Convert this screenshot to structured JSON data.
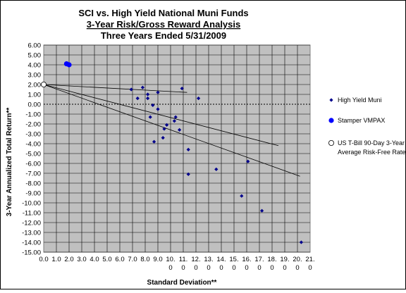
{
  "chart_data": {
    "type": "scatter",
    "title": "SCI vs. High Yield National Muni Funds",
    "subtitle": "3-Year Risk/Gross Reward Analysis",
    "subtitle2": "Three Years Ended 5/31/2009",
    "xlabel": "Standard Deviation**",
    "ylabel": "3-Year Annualized Total Return**",
    "xlim": [
      0,
      21
    ],
    "ylim": [
      -15,
      6
    ],
    "grid": true,
    "legend_position": "right",
    "x_ticks": [
      [
        "0.0"
      ],
      [
        "1.0"
      ],
      [
        "2.0"
      ],
      [
        "3.0"
      ],
      [
        "4.0"
      ],
      [
        "5.0"
      ],
      [
        "6.0"
      ],
      [
        "7.0"
      ],
      [
        "8.0"
      ],
      [
        "9.0"
      ],
      [
        "10.",
        "0"
      ],
      [
        "11.",
        "0"
      ],
      [
        "12.",
        "0"
      ],
      [
        "13.",
        "0"
      ],
      [
        "14.",
        "0"
      ],
      [
        "15.",
        "0"
      ],
      [
        "16.",
        "0"
      ],
      [
        "17.",
        "0"
      ],
      [
        "18.",
        "0"
      ],
      [
        "19.",
        "0"
      ],
      [
        "20.",
        "0"
      ],
      [
        "21.",
        "0"
      ]
    ],
    "y_ticks": [
      "6.00",
      "5.00",
      "4.00",
      "3.00",
      "2.00",
      "1.00",
      "0.00",
      "-1.00",
      "-2.00",
      "-3.00",
      "-4.00",
      "-5.00",
      "-6.00",
      "-7.00",
      "-8.00",
      "-9.00",
      "-10.00",
      "-11.00",
      "-12.00",
      "-13.00",
      "-14.00",
      "-15.00"
    ],
    "series": [
      {
        "name": "High Yield Muni",
        "color": "#00008b",
        "marker": "diamond",
        "points": [
          [
            6.9,
            1.5
          ],
          [
            7.4,
            0.6
          ],
          [
            7.8,
            1.7
          ],
          [
            8.2,
            0.6
          ],
          [
            8.2,
            1.0
          ],
          [
            8.4,
            -1.3
          ],
          [
            8.6,
            -0.1
          ],
          [
            8.7,
            -3.8
          ],
          [
            9.0,
            -0.5
          ],
          [
            9.0,
            1.2
          ],
          [
            9.4,
            -3.4
          ],
          [
            9.5,
            -2.5
          ],
          [
            9.7,
            -2.1
          ],
          [
            10.3,
            -1.7
          ],
          [
            10.4,
            -1.3
          ],
          [
            10.7,
            -2.6
          ],
          [
            10.9,
            1.6
          ],
          [
            11.4,
            -4.6
          ],
          [
            11.4,
            -7.1
          ],
          [
            12.2,
            0.6
          ],
          [
            13.6,
            -6.6
          ],
          [
            15.6,
            -9.3
          ],
          [
            16.1,
            -5.8
          ],
          [
            17.2,
            -10.8
          ],
          [
            20.3,
            -14.0
          ]
        ]
      },
      {
        "name": "Stamper VMPAX",
        "color": "#0000ff",
        "marker": "circle",
        "points": [
          [
            1.8,
            4.1
          ],
          [
            2.0,
            4.0
          ]
        ]
      },
      {
        "name": "US T-Bill 90-Day 3-Year Average Risk-Free Rate",
        "legend_lines": [
          "US T-Bill 90-Day 3-Year",
          "Average Risk-Free Rate"
        ],
        "color": "#ffffff",
        "marker": "open-circle",
        "points": [
          [
            0,
            2.0
          ]
        ]
      }
    ],
    "trend_lines": [
      [
        [
          0,
          2.0
        ],
        [
          11.3,
          1.2
        ]
      ],
      [
        [
          0,
          2.0
        ],
        [
          18.5,
          -4.2
        ]
      ],
      [
        [
          0,
          2.0
        ],
        [
          20.2,
          -7.3
        ]
      ]
    ],
    "colors": {
      "plot_background": "#c0c0c0",
      "grid": "#000000",
      "trend_line": "#000000",
      "zero_line": "#000000"
    }
  }
}
